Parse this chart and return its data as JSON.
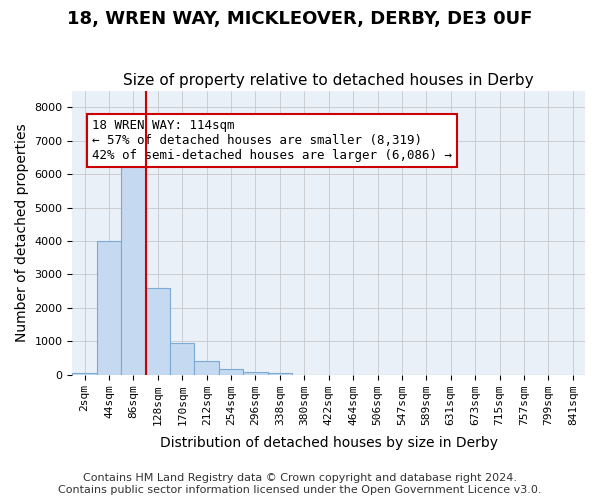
{
  "title": "18, WREN WAY, MICKLEOVER, DERBY, DE3 0UF",
  "subtitle": "Size of property relative to detached houses in Derby",
  "xlabel": "Distribution of detached houses by size in Derby",
  "ylabel": "Number of detached properties",
  "footer_line1": "Contains HM Land Registry data © Crown copyright and database right 2024.",
  "footer_line2": "Contains public sector information licensed under the Open Government Licence v3.0.",
  "bin_labels": [
    "2sqm",
    "44sqm",
    "86sqm",
    "128sqm",
    "170sqm",
    "212sqm",
    "254sqm",
    "296sqm",
    "338sqm",
    "380sqm",
    "422sqm",
    "464sqm",
    "506sqm",
    "547sqm",
    "589sqm",
    "631sqm",
    "673sqm",
    "715sqm",
    "757sqm",
    "799sqm",
    "841sqm"
  ],
  "bar_values": [
    50,
    4000,
    6500,
    2600,
    950,
    420,
    160,
    80,
    50,
    0,
    0,
    0,
    0,
    0,
    0,
    0,
    0,
    0,
    0,
    0,
    0
  ],
  "bar_color": "#c5d9f0",
  "bar_edge_color": "#7baad4",
  "grid_color": "#c0c0c0",
  "background_color": "#eaf0f8",
  "property_line_color": "#cc0000",
  "annotation_text": "18 WREN WAY: 114sqm\n← 57% of detached houses are smaller (8,319)\n42% of semi-detached houses are larger (6,086) →",
  "annotation_box_color": "#ffffff",
  "annotation_box_edge_color": "#cc0000",
  "ylim": [
    0,
    8500
  ],
  "yticks": [
    0,
    1000,
    2000,
    3000,
    4000,
    5000,
    6000,
    7000,
    8000
  ],
  "title_fontsize": 13,
  "subtitle_fontsize": 11,
  "axis_label_fontsize": 10,
  "tick_fontsize": 8,
  "annotation_fontsize": 9,
  "footer_fontsize": 8
}
